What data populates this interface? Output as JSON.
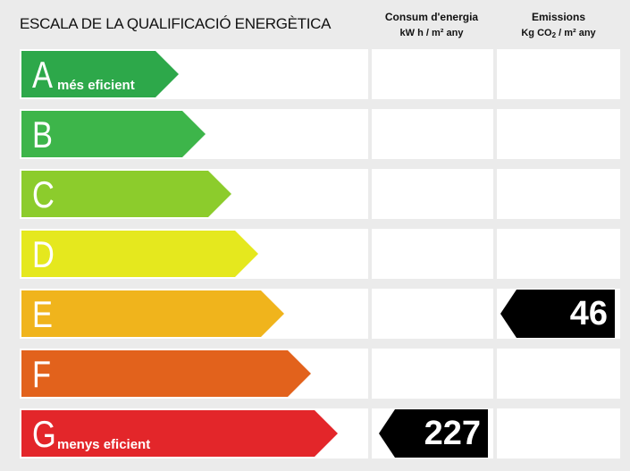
{
  "title": "ESCALA DE LA QUALIFICACIÓ ENERGÈTICA",
  "columns": {
    "consum": {
      "heading": "Consum d'energia",
      "unit": "kW h / m² any"
    },
    "emissions": {
      "heading": "Emissions",
      "unit_prefix": "Kg CO",
      "unit_sub": "2",
      "unit_suffix": " / m² any"
    }
  },
  "classes": [
    {
      "letter": "A",
      "note": "més eficient",
      "color": "#2da84a"
    },
    {
      "letter": "B",
      "note": "",
      "color": "#3db54a"
    },
    {
      "letter": "C",
      "note": "",
      "color": "#8ccc2c"
    },
    {
      "letter": "D",
      "note": "",
      "color": "#e5e81e"
    },
    {
      "letter": "E",
      "note": "",
      "color": "#f0b41c"
    },
    {
      "letter": "F",
      "note": "",
      "color": "#e2621c"
    },
    {
      "letter": "G",
      "note": "menys eficient",
      "color": "#e3262a"
    }
  ],
  "rating": {
    "consum": {
      "class": "G",
      "value": "227"
    },
    "emissions": {
      "class": "E",
      "value": "46"
    }
  }
}
